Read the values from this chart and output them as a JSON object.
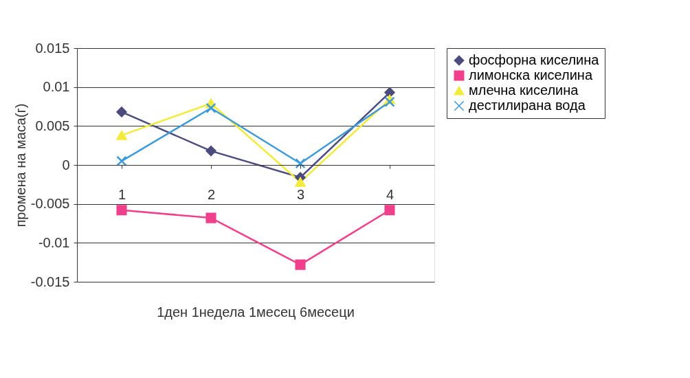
{
  "chart_data": {
    "type": "line",
    "ylabel": "промена на маса(г)",
    "xlabel": "1ден 1недела 1месец 6месеци",
    "categories": [
      "1",
      "2",
      "3",
      "4"
    ],
    "series": [
      {
        "name": "фосфорна киселина",
        "color": "#4b4b7d",
        "marker": "diamond",
        "values": [
          0.0068,
          0.0018,
          -0.0016,
          0.0093
        ]
      },
      {
        "name": "лимонска киселина",
        "color": "#f0408c",
        "marker": "square",
        "values": [
          -0.0058,
          -0.0068,
          -0.0128,
          -0.0058
        ]
      },
      {
        "name": "млечна киселина",
        "color": "#f2ea3c",
        "marker": "triangle",
        "values": [
          0.0038,
          0.0079,
          -0.0022,
          0.0084
        ]
      },
      {
        "name": "дестилирана вода",
        "color": "#3d9ad8",
        "marker": "cross",
        "values": [
          0.0005,
          0.0073,
          0.0002,
          0.0081
        ]
      }
    ],
    "ylim": [
      -0.015,
      0.015
    ],
    "yticks": [
      -0.015,
      -0.01,
      -0.005,
      0,
      0.005,
      0.01,
      0.015
    ],
    "grid": "y",
    "legend": "right",
    "line_style": "solid"
  }
}
